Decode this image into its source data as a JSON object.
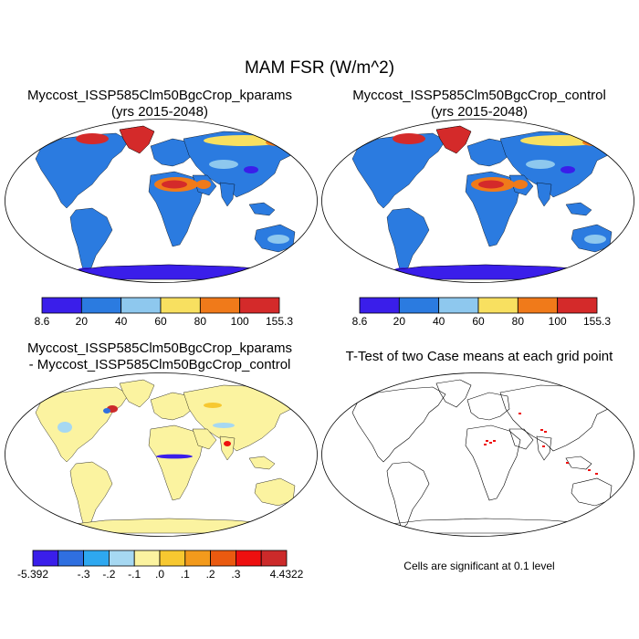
{
  "figure": {
    "title": "MAM FSR (W/m^2)"
  },
  "panels": {
    "top_left": {
      "title_line1": "Myccost_ISSP585Clm50BgcCrop_kparams",
      "title_line2": "(yrs 2015-2048)"
    },
    "top_right": {
      "title_line1": "Myccost_ISSP585Clm50BgcCrop_control",
      "title_line2": "(yrs 2015-2048)"
    },
    "bottom_left": {
      "title_line1": "Myccost_ISSP585Clm50BgcCrop_kparams",
      "title_line2": "- Myccost_ISSP585Clm50BgcCrop_control"
    },
    "bottom_right": {
      "title_line1": "T-Test of two Case means at each grid point",
      "note": "Cells are significant at 0.1 level"
    }
  },
  "colorbars": {
    "absolute": {
      "colors": [
        "#3a1eea",
        "#2b7be0",
        "#8ec8ee",
        "#f8e060",
        "#f07a1a",
        "#d42a2a"
      ],
      "labels": [
        "8.6",
        "20",
        "40",
        "60",
        "80",
        "100",
        "155.3"
      ]
    },
    "difference": {
      "colors": [
        "#3a1eea",
        "#2f6fe0",
        "#2ea8f0",
        "#a6d8f2",
        "#fbf3a0",
        "#f7c830",
        "#f39a1c",
        "#ea5a10",
        "#ee1010",
        "#cc2a2a"
      ],
      "labels": [
        "-5.392",
        "-.3",
        "-.2",
        "-.1",
        ".0",
        ".1",
        ".2",
        ".3",
        "4.4322"
      ]
    }
  },
  "maps": {
    "land_colors": {
      "absolute_base": "#2b7be0",
      "absolute_high": "#d42a2a",
      "absolute_warm": "#f07a1a",
      "absolute_yellow": "#f8e060",
      "absolute_light": "#8ec8ee",
      "absolute_low": "#3a1eea",
      "difference_base": "#fbf3a0",
      "difference_light": "#a6d8f2",
      "significant": "#ee1010"
    }
  }
}
